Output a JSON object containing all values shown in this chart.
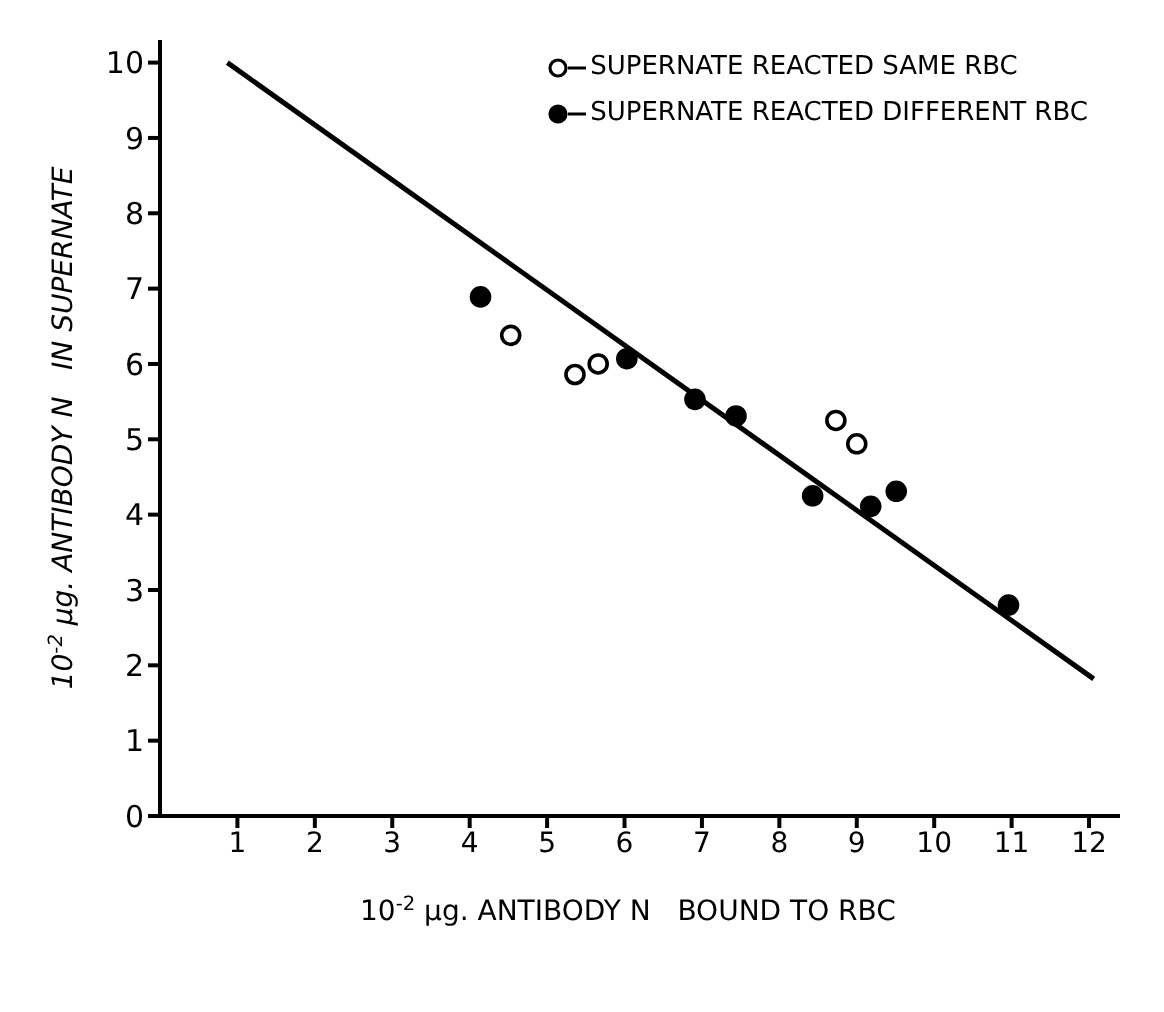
{
  "chart_data": {
    "type": "scatter",
    "xlabel": "10$^{-2}$ μg. ANTIBODY N   BOUND TO RBC",
    "ylabel": "10$^{-2}$ μg. ANTIBODY N   IN SUPERNATE",
    "xlim": [
      0,
      12.4
    ],
    "xticks": [
      1,
      2,
      3,
      4,
      5,
      6,
      7,
      8,
      9,
      10,
      11,
      12
    ],
    "ylim": [
      0,
      10.3
    ],
    "yticks": [
      0,
      1,
      2,
      3,
      4,
      5,
      6,
      7,
      8,
      9,
      10
    ],
    "grid": false,
    "legend": "top right",
    "marker": "circle",
    "series": [
      {
        "name": "SUPERNATE REACTED SAME RBC",
        "color": "#ffffff",
        "x": [
          4.53,
          5.36,
          5.66,
          8.73,
          9.0
        ],
        "values": [
          6.38,
          5.86,
          6.0,
          5.25,
          4.94
        ]
      },
      {
        "name": "SUPERNATE REACTED DIFFERENT RBC",
        "color": "#000000",
        "x": [
          4.14,
          6.03,
          6.91,
          7.44,
          8.43,
          9.18,
          9.51,
          10.96
        ],
        "values": [
          6.89,
          6.07,
          5.53,
          5.31,
          4.25,
          4.11,
          4.31,
          2.8
        ]
      },
      {
        "type": "line",
        "marker": "none",
        "color": "#000000",
        "x": [
          0.87,
          12.06
        ],
        "values": [
          10.0,
          1.82
        ]
      }
    ]
  }
}
